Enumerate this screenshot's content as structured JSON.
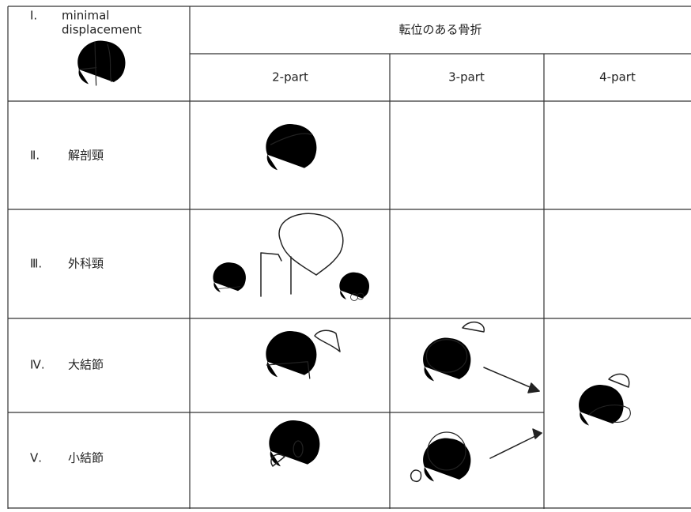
{
  "header": {
    "row_one_numeral": "Ⅰ.",
    "row_one_label": [
      "minimal",
      "displacement"
    ],
    "displaced_title": "転位のある骨折",
    "columns": [
      "2-part",
      "3-part",
      "4-part"
    ]
  },
  "rows": [
    {
      "numeral": "Ⅱ.",
      "label": "解剖頸"
    },
    {
      "numeral": "Ⅲ.",
      "label": "外科頸"
    },
    {
      "numeral": "Ⅳ.",
      "label": "大結節"
    },
    {
      "numeral": "Ⅴ.",
      "label": "小結節"
    }
  ]
}
